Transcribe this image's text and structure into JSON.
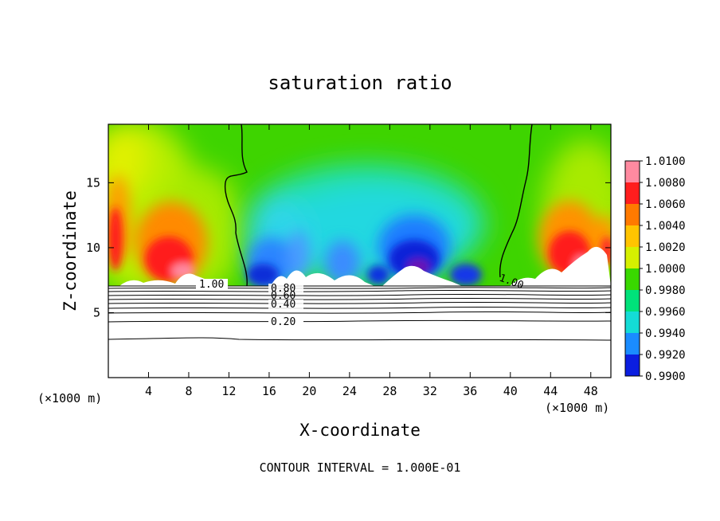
{
  "chart_data": {
    "type": "heatmap",
    "title": "saturation ratio",
    "xlabel": "X-coordinate",
    "ylabel": "Z-coordinate",
    "x_unit_left": "(×1000 m)",
    "x_unit_right": "(×1000 m)",
    "xlim": [
      0,
      50
    ],
    "ylim": [
      0,
      19.5
    ],
    "xticks": [
      4,
      8,
      12,
      16,
      20,
      24,
      28,
      32,
      36,
      40,
      44,
      48
    ],
    "yticks": [
      5,
      10,
      15
    ],
    "footer": "CONTOUR INTERVAL = 1.000E-01",
    "colorbar": {
      "levels": [
        1.01,
        1.008,
        1.006,
        1.004,
        1.002,
        1.0,
        0.998,
        0.996,
        0.994,
        0.992,
        0.99
      ],
      "labels": [
        "1.0100",
        "1.0080",
        "1.0060",
        "1.0040",
        "1.0020",
        "1.0000",
        "0.9980",
        "0.9960",
        "0.9940",
        "0.9920",
        "0.9900"
      ],
      "colors": [
        "#ff8aa0",
        "#ff1e1e",
        "#ff7a00",
        "#ffc400",
        "#d6f000",
        "#39d800",
        "#00e27a",
        "#14dcd6",
        "#1a8cff",
        "#0b1ee0",
        "#6a16b4"
      ]
    },
    "contour_labels": [
      "1.00",
      "0.80",
      "0.60",
      "0.40",
      "0.20",
      "1.00"
    ],
    "regions": [
      {
        "name": "left warm lobe",
        "x_center": 7,
        "z_center": 10,
        "value": 1.007
      },
      {
        "name": "central dry dip",
        "x_center": 29,
        "z_center": 9,
        "value": 0.991
      },
      {
        "name": "right warm lobe",
        "x_center": 46,
        "z_center": 11,
        "value": 1.006
      }
    ]
  }
}
